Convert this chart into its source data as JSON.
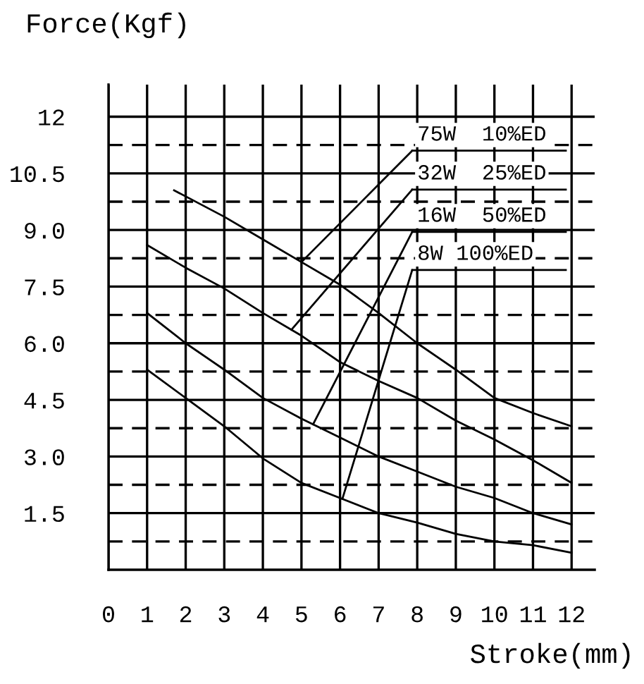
{
  "chart_data": {
    "type": "line",
    "xlabel": "Stroke(mm)",
    "ylabel": "Force(Kgf)",
    "series": [
      {
        "name": "75W  10%ED",
        "color": "#000000",
        "x": [
          1.7,
          3,
          4,
          5,
          6,
          7,
          8,
          9,
          10,
          11,
          12
        ],
        "values": [
          10.05,
          9.35,
          8.75,
          8.15,
          7.55,
          6.8,
          6.0,
          5.3,
          4.55,
          4.15,
          3.8
        ]
      },
      {
        "name": "32W  25%ED",
        "color": "#000000",
        "x": [
          1,
          2,
          3,
          4,
          5,
          6,
          7,
          8,
          9,
          10,
          11,
          12
        ],
        "values": [
          8.6,
          8.0,
          7.45,
          6.8,
          6.2,
          5.5,
          5.0,
          4.55,
          3.95,
          3.45,
          2.9,
          2.3
        ]
      },
      {
        "name": "16W  50%ED",
        "color": "#000000",
        "x": [
          1,
          2,
          3,
          4,
          5,
          6,
          7,
          8,
          9,
          10,
          11,
          12
        ],
        "values": [
          6.8,
          6.0,
          5.3,
          4.55,
          4.0,
          3.5,
          3.0,
          2.6,
          2.2,
          1.9,
          1.5,
          1.2
        ]
      },
      {
        "name": "8W 100%ED",
        "color": "#000000",
        "x": [
          1,
          2,
          3,
          4,
          5,
          6,
          7,
          8,
          9,
          10,
          11,
          12
        ],
        "values": [
          5.3,
          4.55,
          3.8,
          2.95,
          2.3,
          1.9,
          1.5,
          1.25,
          0.95,
          0.75,
          0.65,
          0.45
        ]
      }
    ],
    "xlim": [
      0,
      12.6
    ],
    "ylim": [
      0,
      12.85
    ],
    "xticks": [
      0,
      1,
      2,
      3,
      4,
      5,
      6,
      7,
      8,
      9,
      10,
      11,
      12
    ],
    "yticks": [
      {
        "value": 0.75,
        "label": null
      },
      1.5,
      {
        "value": 2.25,
        "label": null
      },
      {
        "value": 3,
        "label": "3.0"
      },
      {
        "value": 3.75,
        "label": null
      },
      4.5,
      {
        "value": 5.25,
        "label": null
      },
      {
        "value": 6,
        "label": "6.0"
      },
      {
        "value": 6.75,
        "label": null
      },
      7.5,
      {
        "value": 8.25,
        "label": null
      },
      {
        "value": 9,
        "label": "9.0"
      },
      {
        "value": 9.75,
        "label": null
      },
      10.5,
      {
        "value": 11.25,
        "label": null
      },
      12
    ],
    "grid": true,
    "legend": false,
    "marker": "none",
    "line_style": "solid"
  }
}
